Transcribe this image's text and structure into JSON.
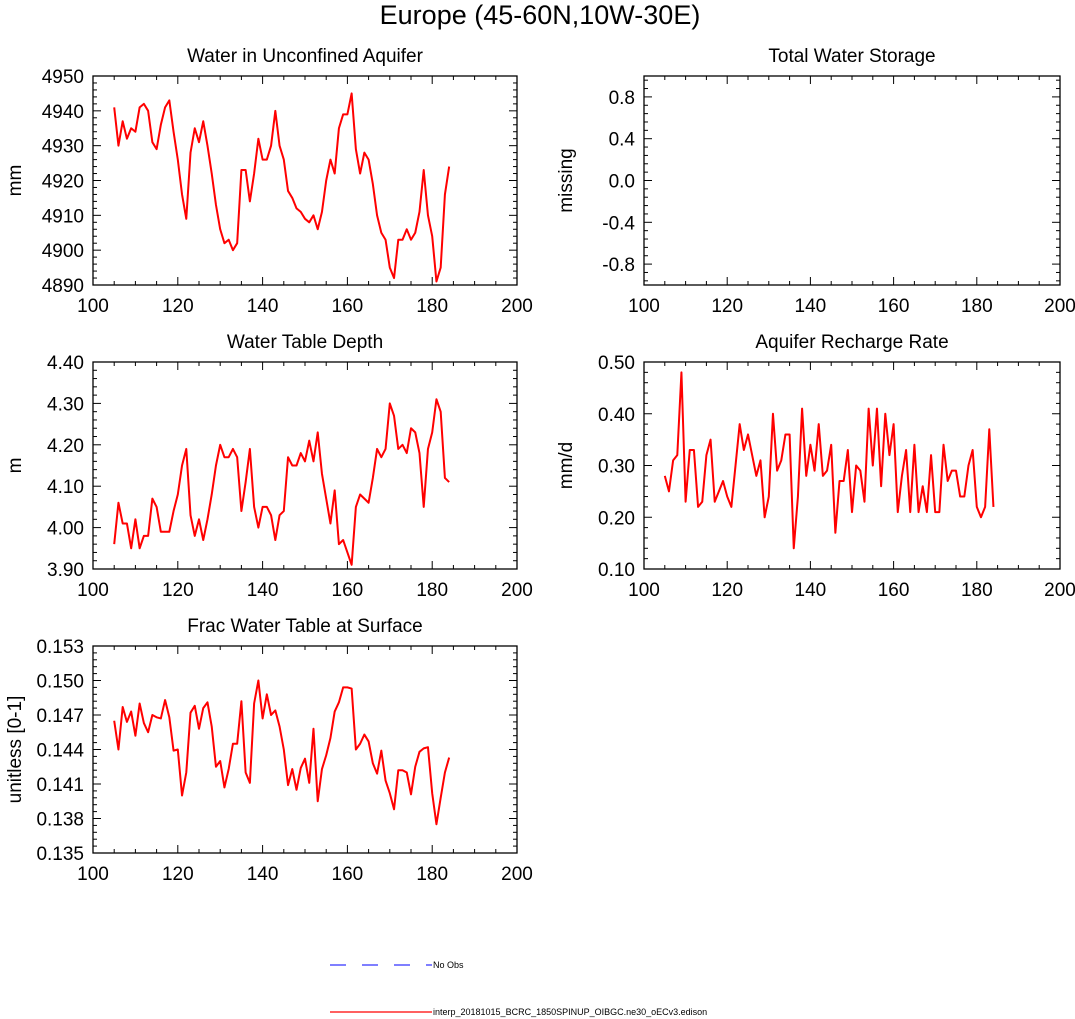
{
  "figure": {
    "title": "Europe (45-60N,10W-30E)",
    "line_color": "#ff0000",
    "obs_color": "#3333ff"
  },
  "legend": {
    "items": [
      {
        "label": "No Obs",
        "style": "dashed",
        "color": "#3333ff"
      },
      {
        "label": "interp_20181015_BCRC_1850SPINUP_OIBGC.ne30_oECv3.edison",
        "style": "solid",
        "color": "#ff0000"
      }
    ]
  },
  "chart_data": [
    {
      "type": "line",
      "title": "Water in Unconfined Aquifer",
      "xlabel": "",
      "ylabel": "mm",
      "xlim": [
        100,
        200
      ],
      "ylim": [
        4890,
        4950
      ],
      "xticks": [
        "100",
        "120",
        "140",
        "160",
        "180",
        "200"
      ],
      "yticks": [
        "4950",
        "4940",
        "4930",
        "4920",
        "4910",
        "4900",
        "4890"
      ],
      "x_start": 105,
      "series": [
        {
          "name": "interp_20181015_BCRC_1850SPINUP_OIBGC.ne30_oECv3.edison",
          "values": [
            4941,
            4930,
            4937,
            4932,
            4935,
            4934,
            4941,
            4942,
            4940,
            4931,
            4929,
            4936,
            4941,
            4943,
            4934,
            4926,
            4916,
            4909,
            4928,
            4935,
            4931,
            4937,
            4930,
            4922,
            4913,
            4906,
            4902,
            4903,
            4900,
            4902,
            4923,
            4923,
            4914,
            4922,
            4932,
            4926,
            4926,
            4930,
            4940,
            4930,
            4926,
            4917,
            4915,
            4912,
            4911,
            4909,
            4908,
            4910,
            4906,
            4911,
            4920,
            4926,
            4922,
            4935,
            4939,
            4939,
            4945,
            4929,
            4922,
            4928,
            4926,
            4919,
            4910,
            4905,
            4903,
            4895,
            4892,
            4903,
            4903,
            4906,
            4903,
            4905,
            4911,
            4923,
            4910,
            4904,
            4891,
            4895,
            4916,
            4924
          ]
        }
      ]
    },
    {
      "type": "line",
      "title": "Total Water Storage",
      "xlabel": "",
      "ylabel": "missing",
      "xlim": [
        100,
        200
      ],
      "ylim": [
        -1,
        1
      ],
      "xticks": [
        "100",
        "120",
        "140",
        "160",
        "180",
        "200"
      ],
      "yticks": [
        "0.8",
        "0.4",
        "0.0",
        "-0.4",
        "-0.8"
      ],
      "x_start": 105,
      "series": []
    },
    {
      "type": "line",
      "title": "Water Table Depth",
      "xlabel": "",
      "ylabel": "m",
      "xlim": [
        100,
        200
      ],
      "ylim": [
        3.9,
        4.4
      ],
      "xticks": [
        "100",
        "120",
        "140",
        "160",
        "180",
        "200"
      ],
      "yticks": [
        "4.40",
        "4.30",
        "4.20",
        "4.10",
        "4.00",
        "3.90"
      ],
      "x_start": 105,
      "series": [
        {
          "name": "interp_20181015_BCRC_1850SPINUP_OIBGC.ne30_oECv3.edison",
          "values": [
            3.96,
            4.06,
            4.01,
            4.01,
            3.95,
            4.02,
            3.95,
            3.98,
            3.98,
            4.07,
            4.05,
            3.99,
            3.99,
            3.99,
            4.04,
            4.08,
            4.15,
            4.19,
            4.03,
            3.98,
            4.02,
            3.97,
            4.02,
            4.08,
            4.15,
            4.2,
            4.17,
            4.17,
            4.19,
            4.17,
            4.04,
            4.11,
            4.19,
            4.05,
            4.0,
            4.05,
            4.05,
            4.03,
            3.97,
            4.03,
            4.04,
            4.17,
            4.15,
            4.15,
            4.18,
            4.16,
            4.21,
            4.16,
            4.23,
            4.13,
            4.07,
            4.01,
            4.09,
            3.96,
            3.97,
            3.94,
            3.91,
            4.05,
            4.08,
            4.07,
            4.06,
            4.12,
            4.19,
            4.17,
            4.19,
            4.3,
            4.27,
            4.19,
            4.2,
            4.18,
            4.24,
            4.23,
            4.18,
            4.05,
            4.19,
            4.23,
            4.31,
            4.28,
            4.12,
            4.11
          ]
        }
      ]
    },
    {
      "type": "line",
      "title": "Aquifer Recharge Rate",
      "xlabel": "",
      "ylabel": "mm/d",
      "xlim": [
        100,
        200
      ],
      "ylim": [
        0.1,
        0.5
      ],
      "xticks": [
        "100",
        "120",
        "140",
        "160",
        "180",
        "200"
      ],
      "yticks": [
        "0.50",
        "0.40",
        "0.30",
        "0.20",
        "0.10"
      ],
      "x_start": 105,
      "series": [
        {
          "name": "interp_20181015_BCRC_1850SPINUP_OIBGC.ne30_oECv3.edison",
          "values": [
            0.28,
            0.25,
            0.31,
            0.32,
            0.48,
            0.23,
            0.33,
            0.33,
            0.22,
            0.23,
            0.32,
            0.35,
            0.23,
            0.25,
            0.27,
            0.24,
            0.22,
            0.3,
            0.38,
            0.33,
            0.36,
            0.32,
            0.28,
            0.31,
            0.2,
            0.24,
            0.4,
            0.29,
            0.31,
            0.36,
            0.36,
            0.14,
            0.24,
            0.41,
            0.28,
            0.34,
            0.29,
            0.38,
            0.28,
            0.29,
            0.34,
            0.17,
            0.27,
            0.27,
            0.33,
            0.21,
            0.3,
            0.29,
            0.23,
            0.41,
            0.3,
            0.41,
            0.26,
            0.4,
            0.32,
            0.38,
            0.21,
            0.28,
            0.33,
            0.21,
            0.34,
            0.21,
            0.26,
            0.21,
            0.32,
            0.21,
            0.21,
            0.34,
            0.27,
            0.29,
            0.29,
            0.24,
            0.24,
            0.3,
            0.33,
            0.22,
            0.2,
            0.22,
            0.37,
            0.22
          ]
        }
      ]
    },
    {
      "type": "line",
      "title": "Frac Water Table at Surface",
      "xlabel": "",
      "ylabel": "unitless [0-1]",
      "xlim": [
        100,
        200
      ],
      "ylim": [
        0.135,
        0.153
      ],
      "xticks": [
        "100",
        "120",
        "140",
        "160",
        "180",
        "200"
      ],
      "yticks": [
        "0.153",
        "0.150",
        "0.147",
        "0.144",
        "0.141",
        "0.138",
        "0.135"
      ],
      "x_start": 105,
      "series": [
        {
          "name": "interp_20181015_BCRC_1850SPINUP_OIBGC.ne30_oECv3.edison",
          "values": [
            0.1465,
            0.144,
            0.1477,
            0.1464,
            0.1473,
            0.1452,
            0.148,
            0.1463,
            0.1455,
            0.147,
            0.1468,
            0.1467,
            0.1483,
            0.1468,
            0.1439,
            0.144,
            0.14,
            0.142,
            0.1472,
            0.1478,
            0.1458,
            0.1476,
            0.1481,
            0.146,
            0.1425,
            0.143,
            0.1407,
            0.1423,
            0.1445,
            0.1445,
            0.1482,
            0.142,
            0.1411,
            0.148,
            0.15,
            0.1467,
            0.1488,
            0.147,
            0.1474,
            0.146,
            0.144,
            0.1409,
            0.1423,
            0.1405,
            0.1424,
            0.1432,
            0.1411,
            0.1458,
            0.1395,
            0.1423,
            0.1435,
            0.145,
            0.1473,
            0.1481,
            0.1494,
            0.1494,
            0.1493,
            0.144,
            0.1445,
            0.1453,
            0.1447,
            0.1428,
            0.1419,
            0.1439,
            0.1413,
            0.1402,
            0.1388,
            0.1422,
            0.1422,
            0.142,
            0.1401,
            0.1425,
            0.1438,
            0.1441,
            0.1442,
            0.1402,
            0.1375,
            0.1398,
            0.142,
            0.1433
          ]
        }
      ]
    }
  ]
}
